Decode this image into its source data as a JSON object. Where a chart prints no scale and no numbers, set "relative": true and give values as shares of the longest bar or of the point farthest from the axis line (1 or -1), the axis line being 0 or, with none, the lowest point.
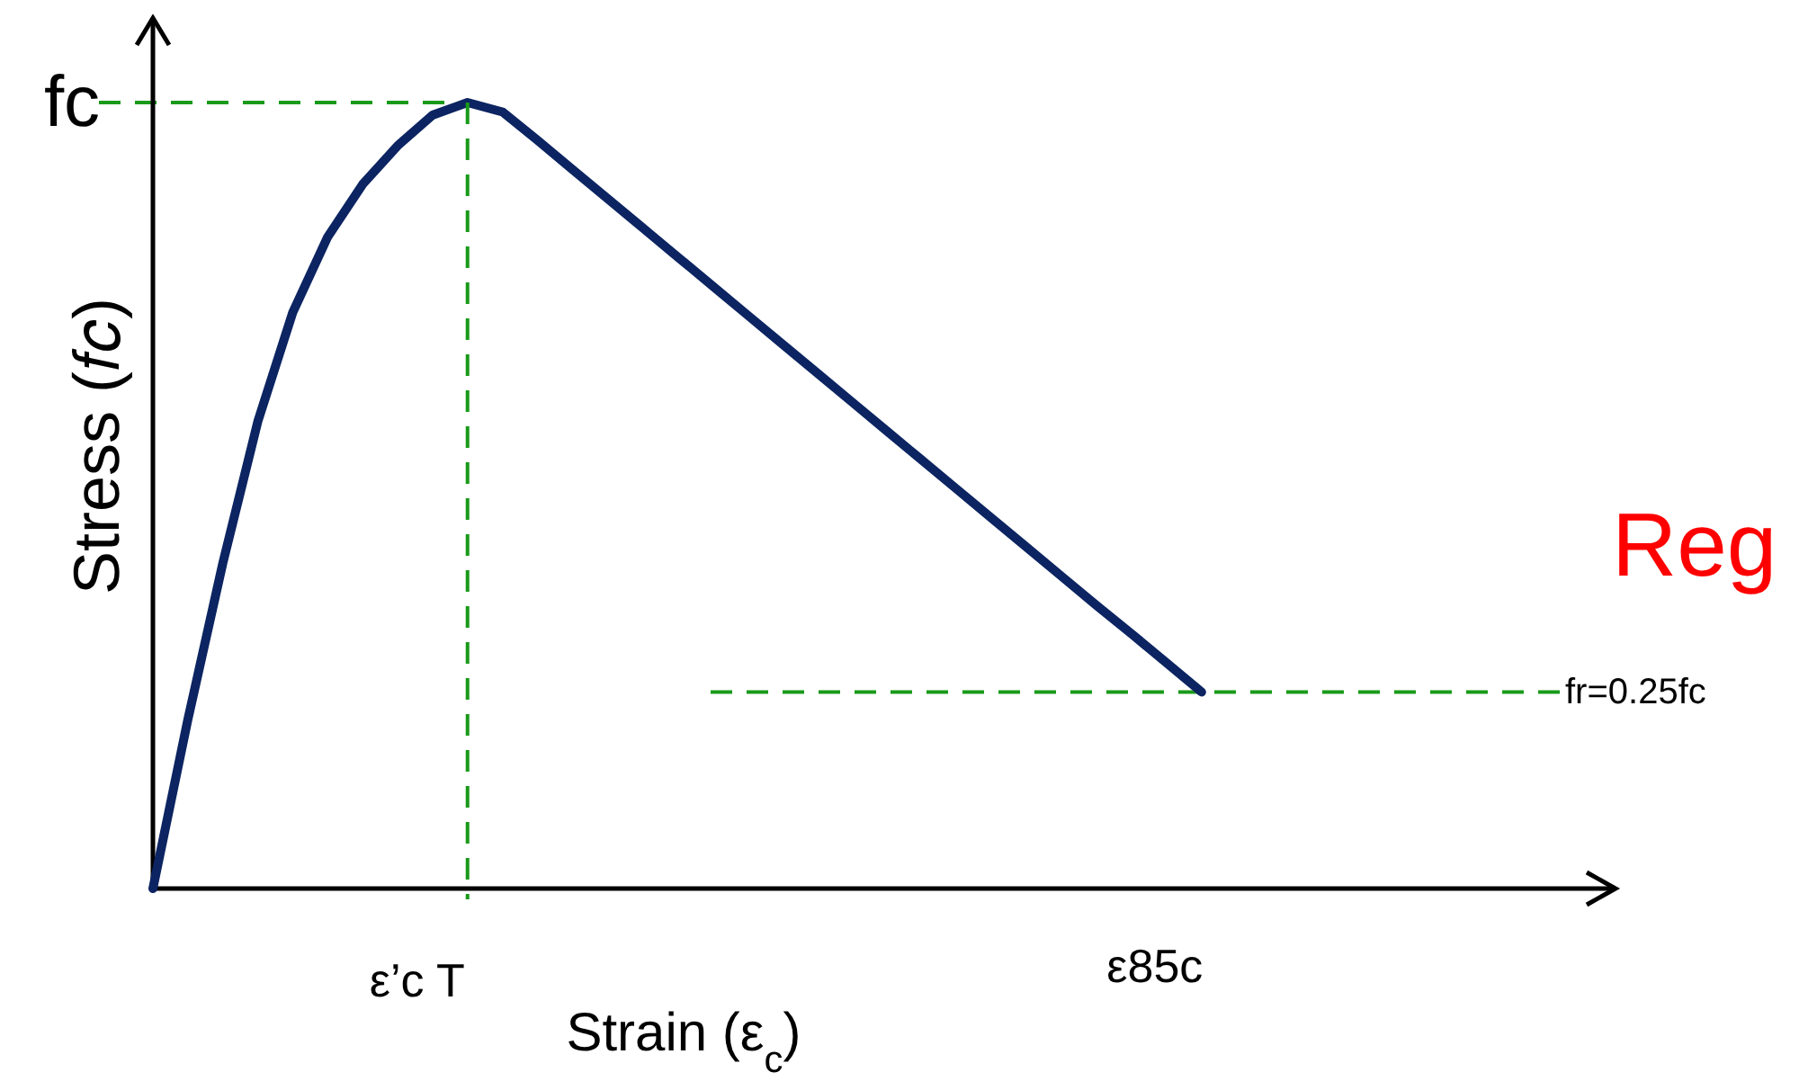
{
  "chart_data": {
    "type": "line",
    "relative": true,
    "legend": false,
    "xlabel": "Strain (ε$_{c}$)",
    "ylabel": "Stress (𝑓𝑐)",
    "categories": [
      null,
      null,
      null,
      null,
      null,
      null,
      null,
      null,
      null,
      null,
      null,
      null,
      null,
      null,
      null,
      null,
      null,
      null,
      null,
      null,
      null,
      null,
      null,
      null,
      null,
      null,
      null,
      null,
      null,
      null,
      null
    ],
    "series": [
      {
        "color": "#0c2461",
        "values": [
          0,
          0.215,
          0.414,
          0.594,
          0.733,
          0.829,
          0.896,
          0.945,
          0.984,
          1,
          0.988,
          0.952,
          0.915,
          0.878,
          0.841,
          0.804,
          0.767,
          0.73,
          0.693,
          0.656,
          0.619,
          0.582,
          0.545,
          0.508,
          0.471,
          0.434,
          0.397,
          0.36,
          0.324,
          0.287,
          0.25
        ]
      }
    ],
    "ref_lines": [
      {
        "axis": "y",
        "value": 1,
        "label": "fc",
        "color": "#1a9a1a",
        "line_style": "dashed"
      },
      {
        "axis": "y",
        "value": 0.25,
        "label": "fr=0.25fc",
        "color": "#1a9a1a",
        "line_style": "dashed"
      }
    ],
    "annotations": [
      "ε’c T",
      "ε85c",
      "Reg"
    ]
  }
}
